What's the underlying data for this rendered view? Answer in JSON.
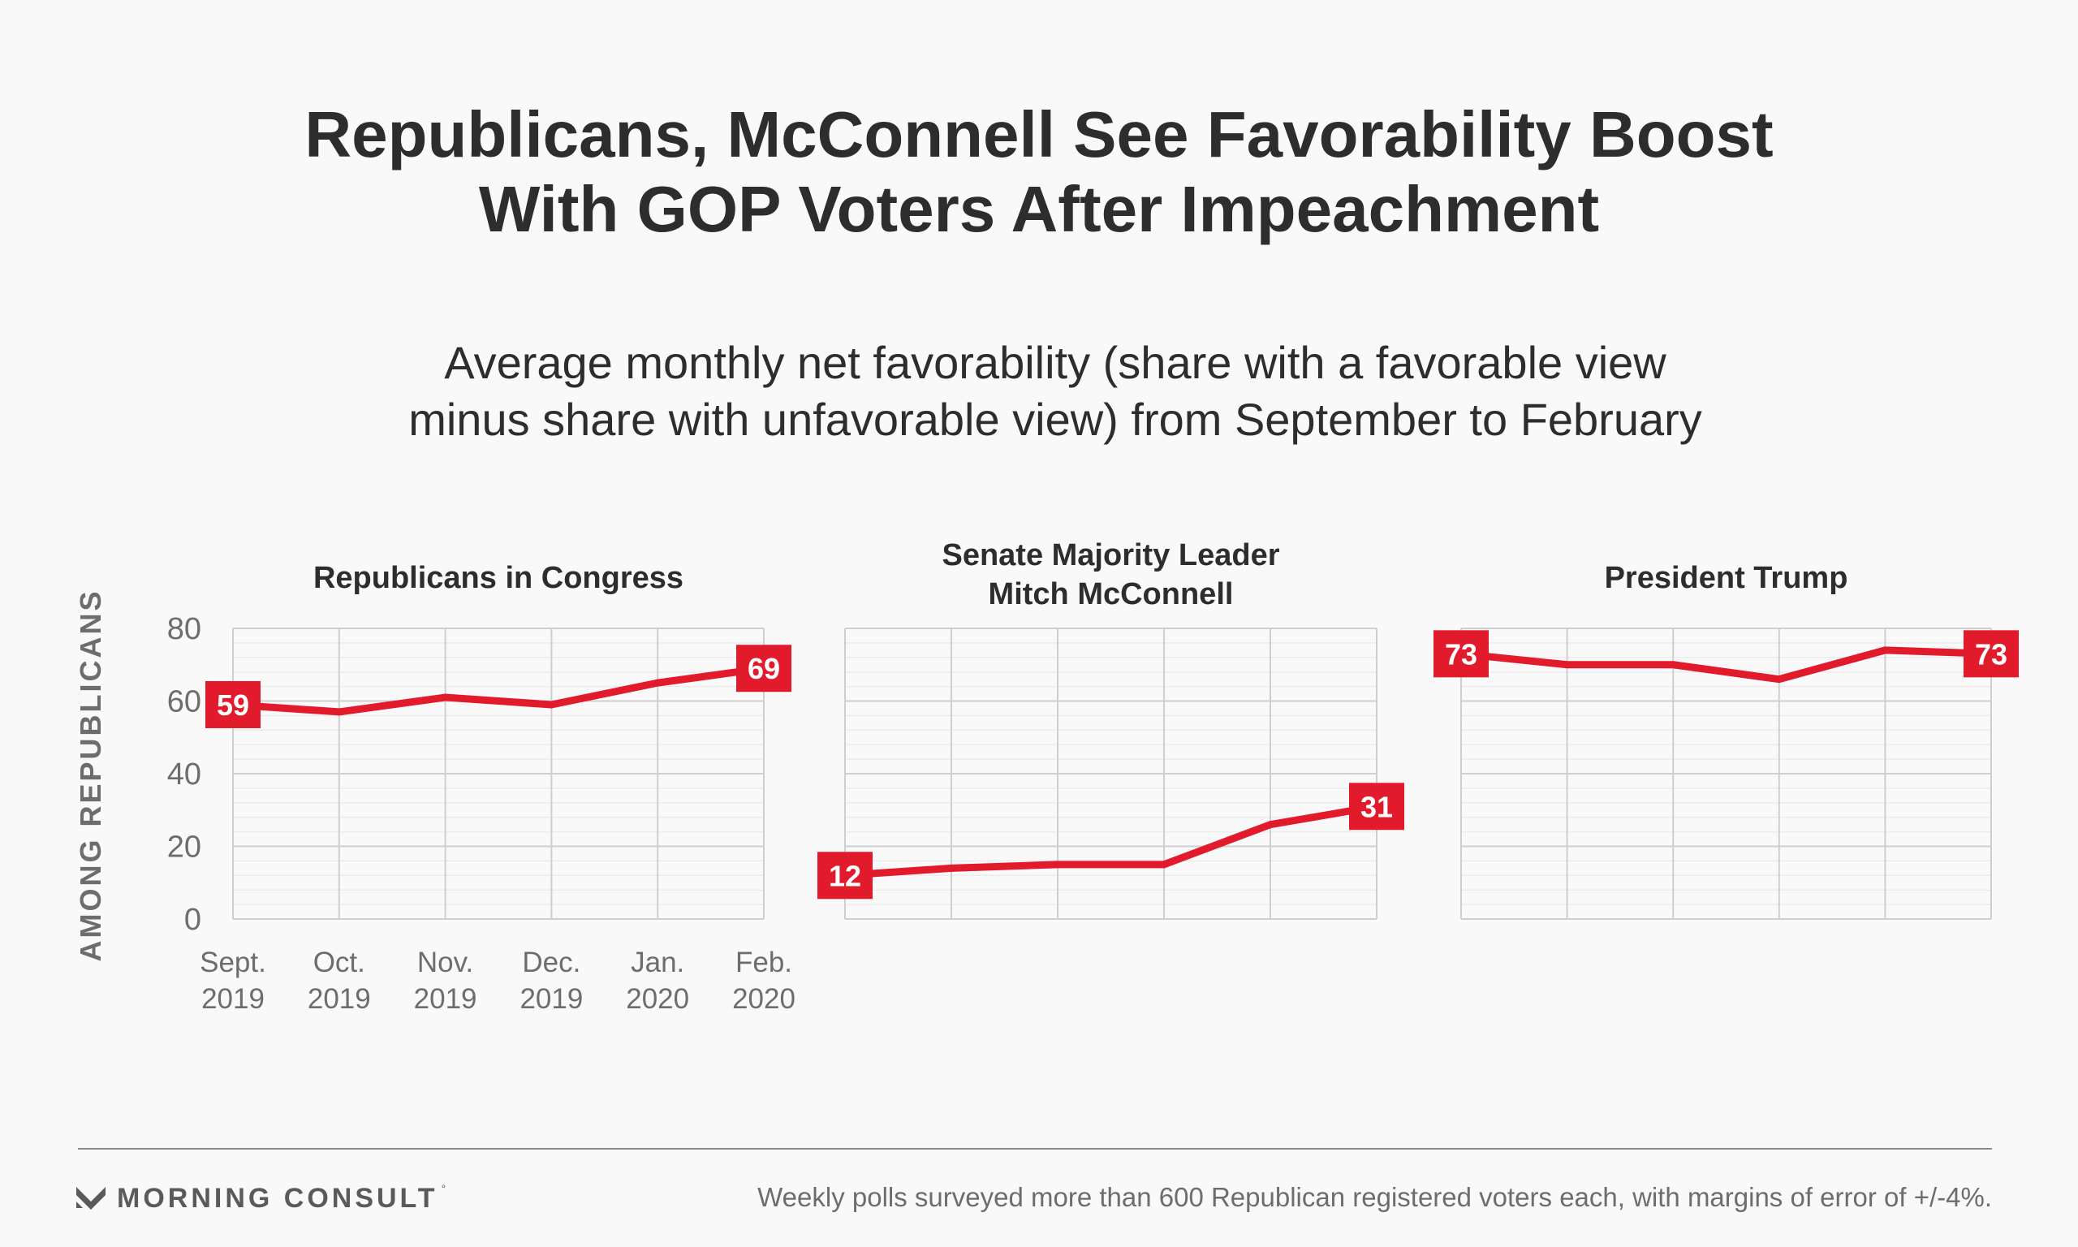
{
  "title_lines": [
    "Republicans, McConnell See Favorability Boost",
    "With GOP Voters After Impeachment"
  ],
  "subtitle_lines": [
    "Average monthly net favorability (share with a favorable view",
    "minus share with unfavorable view) from September to February"
  ],
  "colors": {
    "line": "#e11b2b",
    "label_box": "#e11b2b",
    "grid_major": "#cfcfcf",
    "grid_minor": "#ececec",
    "text_dark": "#2d2d2d",
    "text_axis": "#6d6d6d"
  },
  "chart_data": [
    {
      "type": "line",
      "title": "Republicans in Congress",
      "ylabel": "AMONG REPUBLICANS",
      "ylim": [
        0,
        80
      ],
      "yticks": [
        "0",
        "20",
        "40",
        "60",
        "80"
      ],
      "x": [
        [
          "Sept.",
          "2019"
        ],
        [
          "Oct.",
          "2019"
        ],
        [
          "Nov.",
          "2019"
        ],
        [
          "Dec.",
          "2019"
        ],
        [
          "Jan.",
          "2020"
        ],
        [
          "Feb.",
          "2020"
        ]
      ],
      "values": [
        59,
        57,
        61,
        59,
        65,
        69
      ],
      "end_labels": [
        "59",
        "69"
      ]
    },
    {
      "type": "line",
      "title": "Senate Majority Leader Mitch McConnell",
      "title_lines": [
        "Senate Majority Leader",
        "Mitch McConnell"
      ],
      "ylim": [
        0,
        80
      ],
      "values": [
        12,
        14,
        15,
        15,
        26,
        31
      ],
      "end_labels": [
        "12",
        "31"
      ]
    },
    {
      "type": "line",
      "title": "President Trump",
      "ylim": [
        0,
        80
      ],
      "values": [
        73,
        70,
        70,
        66,
        74,
        73
      ],
      "end_labels": [
        "73",
        "73"
      ]
    }
  ],
  "footer": {
    "brand": "MORNING CONSULT",
    "brand_mark": "°",
    "note": "Weekly polls surveyed more than 600 Republican registered voters each, with margins of error of +/-4%."
  }
}
